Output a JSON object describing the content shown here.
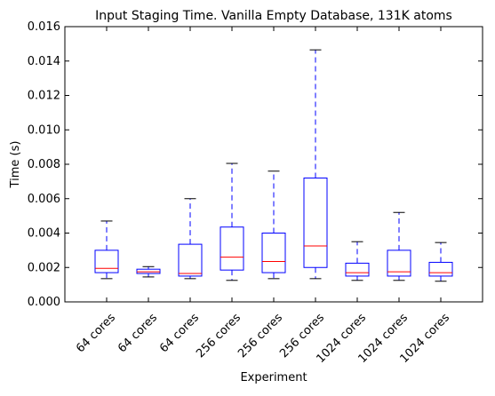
{
  "chart_data": {
    "type": "box",
    "title": "Input Staging Time. Vanilla Empty Database, 131K atoms",
    "xlabel": "Experiment",
    "ylabel": "Time (s)",
    "ylim": [
      0,
      0.016
    ],
    "yticks": [
      "0.000",
      "0.002",
      "0.004",
      "0.006",
      "0.008",
      "0.010",
      "0.012",
      "0.014",
      "0.016"
    ],
    "grid": false,
    "categories": [
      "64 cores",
      "64 cores",
      "64 cores",
      "256 cores",
      "256 cores",
      "256 cores",
      "1024 cores",
      "1024 cores",
      "1024 cores"
    ],
    "boxes": [
      {
        "whislo": 0.00135,
        "q1": 0.0017,
        "med": 0.00195,
        "q3": 0.003,
        "whishi": 0.0047
      },
      {
        "whislo": 0.00145,
        "q1": 0.00165,
        "med": 0.00175,
        "q3": 0.0019,
        "whishi": 0.00205
      },
      {
        "whislo": 0.00135,
        "q1": 0.0015,
        "med": 0.00165,
        "q3": 0.00335,
        "whishi": 0.006
      },
      {
        "whislo": 0.00125,
        "q1": 0.00185,
        "med": 0.0026,
        "q3": 0.00435,
        "whishi": 0.00805
      },
      {
        "whislo": 0.00135,
        "q1": 0.0017,
        "med": 0.00235,
        "q3": 0.004,
        "whishi": 0.0076
      },
      {
        "whislo": 0.00135,
        "q1": 0.002,
        "med": 0.00325,
        "q3": 0.0072,
        "whishi": 0.01465
      },
      {
        "whislo": 0.00125,
        "q1": 0.0015,
        "med": 0.0017,
        "q3": 0.00225,
        "whishi": 0.0035
      },
      {
        "whislo": 0.00125,
        "q1": 0.0015,
        "med": 0.00175,
        "q3": 0.003,
        "whishi": 0.0052
      },
      {
        "whislo": 0.0012,
        "q1": 0.0015,
        "med": 0.0017,
        "q3": 0.0023,
        "whishi": 0.00345
      }
    ],
    "colors": {
      "box": "#0000ff",
      "median": "#ff0000",
      "cap": "#000000",
      "axes": "#000000"
    }
  }
}
